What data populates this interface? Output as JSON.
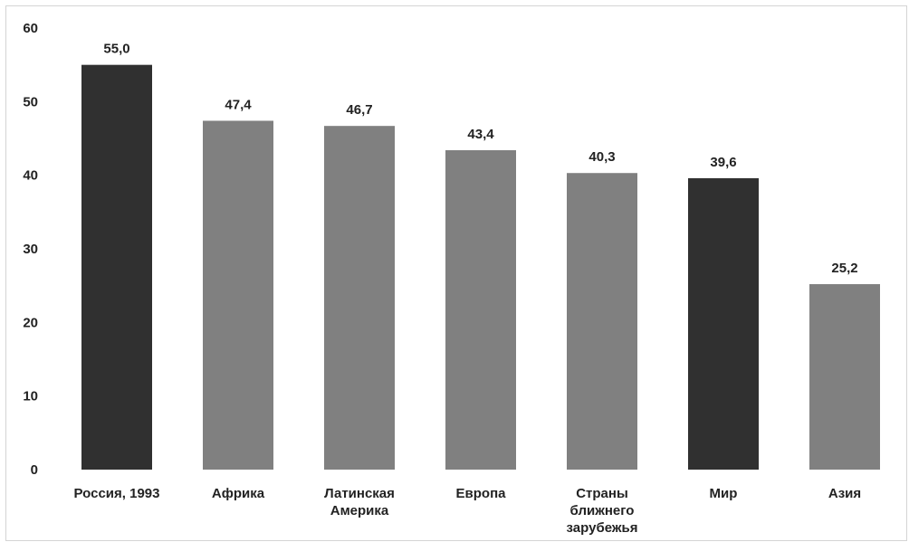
{
  "chart_data": {
    "type": "bar",
    "title": "",
    "xlabel": "",
    "ylabel": "",
    "ylim": [
      0,
      60
    ],
    "yticks": [
      0,
      10,
      20,
      30,
      40,
      50,
      60
    ],
    "ytick_labels": [
      "0",
      "10",
      "20",
      "30",
      "40",
      "50",
      "60"
    ],
    "grid": false,
    "legend": "none",
    "categories": [
      [
        "Россия, 1993"
      ],
      [
        "Африка"
      ],
      [
        "Латинская",
        "Америка"
      ],
      [
        "Европа"
      ],
      [
        "Страны",
        "ближнего",
        "зарубежья"
      ],
      [
        "Мир"
      ],
      [
        "Азия"
      ]
    ],
    "values": [
      55.0,
      47.4,
      46.7,
      43.4,
      40.3,
      39.6,
      25.2
    ],
    "value_labels": [
      "55,0",
      "47,4",
      "46,7",
      "43,4",
      "40,3",
      "39,6",
      "25,2"
    ],
    "bar_colors": [
      "#303030",
      "#808080",
      "#808080",
      "#808080",
      "#808080",
      "#303030",
      "#808080"
    ]
  }
}
